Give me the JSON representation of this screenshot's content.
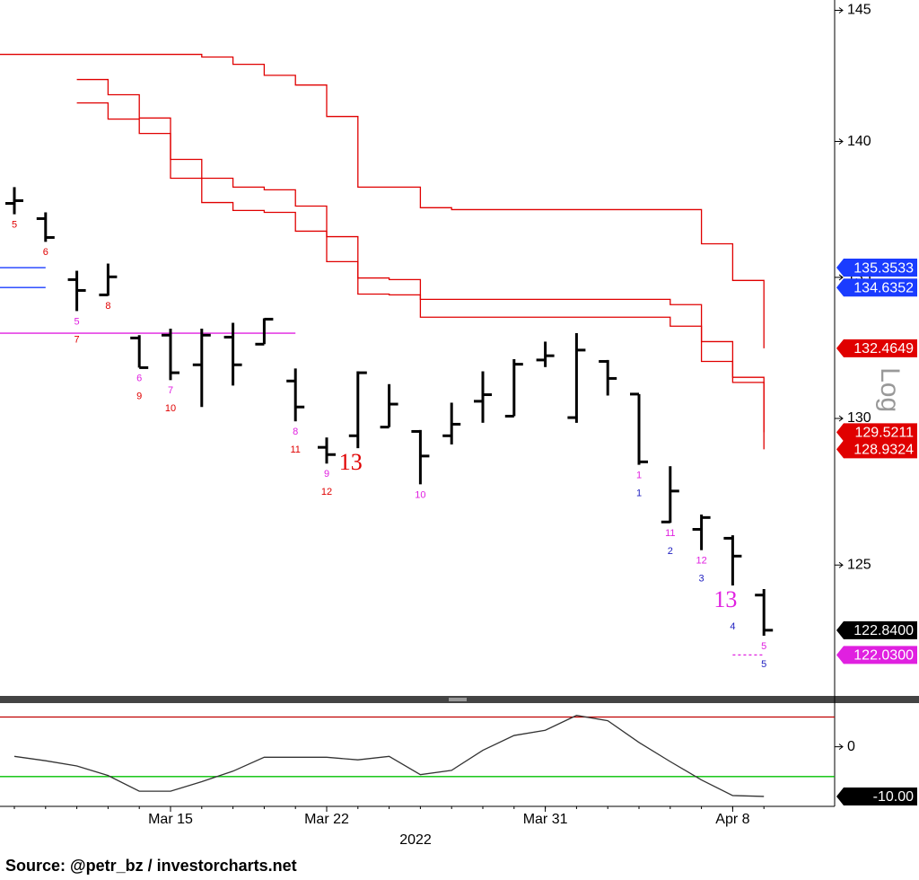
{
  "chart_data": [
    {
      "type": "ohlc",
      "x": [
        "2022-03-08",
        "2022-03-09",
        "2022-03-10",
        "2022-03-11",
        "2022-03-14",
        "2022-03-15",
        "2022-03-16",
        "2022-03-17",
        "2022-03-18",
        "2022-03-21",
        "2022-03-22",
        "2022-03-23",
        "2022-03-24",
        "2022-03-25",
        "2022-03-28",
        "2022-03-29",
        "2022-03-30",
        "2022-03-31",
        "2022-04-01",
        "2022-04-04",
        "2022-04-05",
        "2022-04-06",
        "2022-04-07",
        "2022-04-08",
        "2022-04-11"
      ],
      "open": [
        137.7,
        137.14,
        134.92,
        134.37,
        132.83,
        132.93,
        131.88,
        132.86,
        132.61,
        131.31,
        129.0,
        129.4,
        129.7,
        129.55,
        129.4,
        130.6,
        130.08,
        132.05,
        130.03,
        132.0,
        130.85,
        126.45,
        126.2,
        125.9,
        124.0
      ],
      "high": [
        138.3,
        137.37,
        135.24,
        135.5,
        132.93,
        133.16,
        133.16,
        133.37,
        133.53,
        131.75,
        129.34,
        131.65,
        131.2,
        129.6,
        130.55,
        131.65,
        132.08,
        132.7,
        133.0,
        132.05,
        130.85,
        128.35,
        126.7,
        126.0,
        124.2
      ],
      "low": [
        137.3,
        136.29,
        133.79,
        134.34,
        131.78,
        131.34,
        130.4,
        131.15,
        132.61,
        129.9,
        128.44,
        128.97,
        129.7,
        127.73,
        129.1,
        129.85,
        130.08,
        131.8,
        129.85,
        130.8,
        128.4,
        126.42,
        125.5,
        124.32,
        122.66
      ],
      "close": [
        137.8,
        136.45,
        134.53,
        135.02,
        131.78,
        131.6,
        132.93,
        131.88,
        133.5,
        130.4,
        128.75,
        131.6,
        130.5,
        128.7,
        129.8,
        130.83,
        131.9,
        132.2,
        132.4,
        131.4,
        128.5,
        127.5,
        126.6,
        125.3,
        122.84
      ],
      "bar_color": "#000000",
      "ylim": [
        120.7,
        145.4
      ],
      "log": true,
      "scale_label": "Log",
      "yticks": [
        125,
        130,
        135,
        140,
        145
      ],
      "xticks": [
        {
          "value": "2022-03-15",
          "label": "Mar 15"
        },
        {
          "value": "2022-03-22",
          "label": "Mar 22"
        },
        {
          "value": "2022-03-31",
          "label": "Mar 31"
        },
        {
          "value": "2022-04-08",
          "label": "Apr 8"
        }
      ],
      "x_year_label": "2022",
      "step_lines": [
        {
          "color": "#e00000",
          "values": [
            143.3,
            143.3,
            143.3,
            143.3,
            143.3,
            143.3,
            143.2,
            142.92,
            142.5,
            142.13,
            140.94,
            138.3,
            138.3,
            137.54,
            137.47,
            137.47,
            137.47,
            137.47,
            137.47,
            137.47,
            137.47,
            137.47,
            136.22,
            134.89,
            132.4649
          ]
        },
        {
          "color": "#e00000",
          "values": [
            null,
            null,
            142.34,
            141.76,
            140.88,
            139.33,
            138.63,
            138.3,
            138.2,
            137.6,
            136.48,
            134.98,
            134.92,
            134.21,
            134.21,
            134.21,
            134.21,
            134.21,
            134.21,
            134.21,
            134.21,
            134.02,
            132.7,
            131.44,
            129.5211
          ]
        },
        {
          "color": "#e00000",
          "values": [
            null,
            null,
            141.45,
            140.84,
            140.3,
            138.63,
            137.73,
            137.44,
            137.37,
            136.68,
            135.57,
            134.4,
            134.37,
            133.57,
            133.57,
            133.57,
            133.57,
            133.57,
            133.57,
            133.57,
            133.57,
            133.25,
            132.0,
            131.26,
            128.9324
          ]
        }
      ],
      "levels": [
        {
          "value": 135.3533,
          "color": "#1a3cff",
          "to": "2022-03-09"
        },
        {
          "value": 134.6352,
          "color": "#1a3cff",
          "to": "2022-03-09"
        },
        {
          "value": 133.0,
          "color": "#e020e0",
          "to": "2022-03-21"
        },
        {
          "value": 122.03,
          "color": "#e020e0",
          "from": "2022-04-08",
          "to": "2022-04-11",
          "dashed": true
        }
      ],
      "tags": [
        {
          "value": 135.3533,
          "color": "#1a3cff"
        },
        {
          "value": 134.6352,
          "color": "#1a3cff"
        },
        {
          "value": 132.4649,
          "color": "#e00000"
        },
        {
          "value": 129.5211,
          "color": "#e00000"
        },
        {
          "value": 128.9324,
          "color": "#e00000"
        },
        {
          "value": 122.84,
          "label": "122.8400",
          "color": "#000000"
        },
        {
          "value": 122.03,
          "label": "122.0300",
          "color": "#e020e0"
        }
      ],
      "annotations": [
        {
          "x": "2022-03-08",
          "labels": [
            {
              "text": "5",
              "color": "#e00000"
            }
          ]
        },
        {
          "x": "2022-03-09",
          "labels": [
            {
              "text": "6",
              "color": "#e00000"
            }
          ]
        },
        {
          "x": "2022-03-10",
          "labels": [
            {
              "text": "5",
              "color": "#e020e0"
            },
            {
              "text": "7",
              "color": "#e00000"
            }
          ]
        },
        {
          "x": "2022-03-11",
          "labels": [
            {
              "text": "8",
              "color": "#e00000"
            }
          ]
        },
        {
          "x": "2022-03-14",
          "labels": [
            {
              "text": "6",
              "color": "#e020e0"
            },
            {
              "text": "9",
              "color": "#e00000"
            }
          ]
        },
        {
          "x": "2022-03-15",
          "labels": [
            {
              "text": "7",
              "color": "#e020e0"
            },
            {
              "text": "10",
              "color": "#e00000"
            }
          ]
        },
        {
          "x": "2022-03-21",
          "labels": [
            {
              "text": "8",
              "color": "#e020e0"
            },
            {
              "text": "11",
              "color": "#e00000"
            }
          ]
        },
        {
          "x": "2022-03-22",
          "labels": [
            {
              "text": "9",
              "color": "#e020e0"
            },
            {
              "text": "12",
              "color": "#e00000"
            }
          ]
        },
        {
          "x": "2022-03-23",
          "labels": [
            {
              "text": "13",
              "color": "#e00000",
              "size": "large"
            }
          ]
        },
        {
          "x": "2022-03-25",
          "labels": [
            {
              "text": "10",
              "color": "#e020e0"
            }
          ]
        },
        {
          "x": "2022-04-05",
          "labels": [
            {
              "text": "1",
              "color": "#e020e0"
            },
            {
              "text": "1",
              "color": "#2020c0"
            }
          ]
        },
        {
          "x": "2022-04-06",
          "labels": [
            {
              "text": "11",
              "color": "#e020e0"
            },
            {
              "text": "2",
              "color": "#2020c0"
            }
          ]
        },
        {
          "x": "2022-04-07",
          "labels": [
            {
              "text": "12",
              "color": "#e020e0"
            },
            {
              "text": "3",
              "color": "#2020c0"
            }
          ]
        },
        {
          "x": "2022-04-08",
          "labels": [
            {
              "text": "13",
              "color": "#e020e0",
              "size": "large"
            },
            {
              "text": "4",
              "color": "#2020c0"
            }
          ]
        },
        {
          "x": "2022-04-11",
          "labels": [
            {
              "text": "5",
              "color": "#e020e0"
            },
            {
              "text": "5",
              "color": "#2020c0"
            }
          ]
        }
      ]
    },
    {
      "type": "line",
      "values": [
        -1.93,
        -2.81,
        -3.86,
        -5.79,
        -8.95,
        -8.95,
        -7.02,
        -4.91,
        -2.11,
        -2.11,
        -2.11,
        -2.63,
        -1.93,
        -5.61,
        -4.74,
        -0.7,
        2.28,
        3.33,
        6.32,
        5.26,
        0.88,
        -2.98,
        -6.67,
        -9.82,
        -10.0
      ],
      "color": "#333333",
      "ylim": [
        -12,
        8.8
      ],
      "yticks": [
        0
      ],
      "levels": [
        {
          "value": 6,
          "color": "#c00000"
        },
        {
          "value": -6,
          "color": "#00c000"
        }
      ],
      "tags": [
        {
          "value": -10,
          "label": "-10.00",
          "color": "#000000"
        }
      ]
    }
  ],
  "source": "Source: @petr_bz / investorcharts.net"
}
